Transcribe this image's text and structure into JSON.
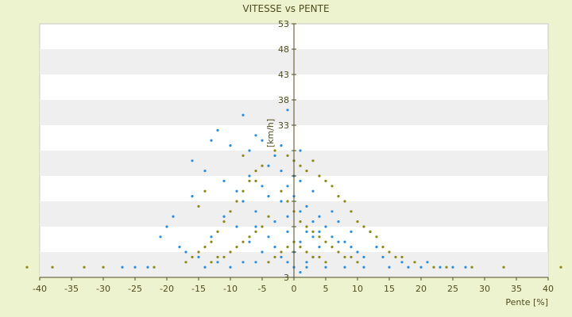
{
  "chart_data": {
    "type": "scatter",
    "title": "VITESSE vs PENTE",
    "xlabel": "Pente [%]",
    "ylabel": "[km/h]",
    "xlim": [
      -40,
      40
    ],
    "ylim": [
      3,
      53
    ],
    "x_ticks": [
      -40,
      -35,
      -30,
      -25,
      -20,
      -15,
      -10,
      -5,
      0,
      5,
      10,
      15,
      20,
      25,
      30,
      35,
      40
    ],
    "y_ticks": [
      3,
      8,
      13,
      18,
      23,
      28,
      33,
      38,
      43,
      48,
      53
    ],
    "y_tick_labels": [
      "3",
      "",
      "",
      "",
      "",
      "",
      "33",
      "38",
      "43",
      "48",
      "53"
    ],
    "grid": "horizontal bands",
    "legend": "none",
    "colors": {
      "series_a": "#2e8fd8",
      "series_b": "#8a8a1a",
      "axis": "#4d4d1f",
      "band": "#efefef"
    },
    "series": [
      {
        "color": "#2e8fd8",
        "points": [
          [
            -12,
            32
          ],
          [
            -13,
            30
          ],
          [
            -8,
            35
          ],
          [
            -10,
            29
          ],
          [
            -7,
            28
          ],
          [
            -6,
            31
          ],
          [
            -5,
            30
          ],
          [
            -1,
            36
          ],
          [
            -16,
            26
          ],
          [
            -14,
            24
          ],
          [
            -20,
            13
          ],
          [
            -21,
            11
          ],
          [
            -19,
            15
          ],
          [
            -18,
            9
          ],
          [
            -17,
            8
          ],
          [
            -16,
            19
          ],
          [
            -11,
            22
          ],
          [
            -9,
            20
          ],
          [
            -8,
            18
          ],
          [
            -7,
            23
          ],
          [
            -6,
            16
          ],
          [
            -5,
            21
          ],
          [
            -4,
            25
          ],
          [
            -3,
            14
          ],
          [
            -2,
            18
          ],
          [
            -1,
            12
          ],
          [
            0,
            26
          ],
          [
            1,
            22
          ],
          [
            2,
            17
          ],
          [
            3,
            20
          ],
          [
            4,
            15
          ],
          [
            5,
            13
          ],
          [
            6,
            11
          ],
          [
            7,
            14
          ],
          [
            8,
            10
          ],
          [
            9,
            9
          ],
          [
            10,
            8
          ],
          [
            12,
            12
          ],
          [
            13,
            9
          ],
          [
            14,
            7
          ],
          [
            -3,
            9
          ],
          [
            -2,
            7
          ],
          [
            -1,
            6
          ],
          [
            0,
            8
          ],
          [
            1,
            10
          ],
          [
            2,
            6
          ],
          [
            3,
            7
          ],
          [
            4,
            9
          ],
          [
            -4,
            11
          ],
          [
            -5,
            8
          ],
          [
            -6,
            6
          ],
          [
            -8,
            6
          ],
          [
            -10,
            5
          ],
          [
            -12,
            6
          ],
          [
            -14,
            5
          ],
          [
            -15,
            7
          ],
          [
            0,
            5
          ],
          [
            1,
            4
          ],
          [
            2,
            5
          ],
          [
            5,
            5
          ],
          [
            8,
            5
          ],
          [
            11,
            5
          ],
          [
            15,
            5
          ],
          [
            17,
            6
          ],
          [
            18,
            5
          ],
          [
            20,
            5
          ],
          [
            21,
            6
          ],
          [
            23,
            5
          ],
          [
            -2,
            24
          ],
          [
            -1,
            21
          ],
          [
            0,
            19
          ],
          [
            1,
            16
          ],
          [
            2,
            12
          ],
          [
            3,
            11
          ],
          [
            -3,
            27
          ],
          [
            -2,
            29
          ],
          [
            1,
            28
          ],
          [
            0,
            23
          ],
          [
            -1,
            15
          ],
          [
            -4,
            19
          ],
          [
            6,
            16
          ],
          [
            7,
            10
          ],
          [
            9,
            12
          ],
          [
            11,
            7
          ],
          [
            4,
            12
          ],
          [
            3,
            14
          ],
          [
            -9,
            13
          ],
          [
            -11,
            15
          ],
          [
            -13,
            11
          ],
          [
            -7,
            10
          ],
          [
            -6,
            13
          ],
          [
            -25,
            5
          ],
          [
            -27,
            5
          ],
          [
            -23,
            5
          ],
          [
            25,
            5
          ],
          [
            27,
            5
          ]
        ]
      },
      {
        "color": "#8a8a1a",
        "points": [
          [
            -3,
            28
          ],
          [
            -1,
            27
          ],
          [
            0,
            26
          ],
          [
            1,
            25
          ],
          [
            2,
            24
          ],
          [
            3,
            26
          ],
          [
            4,
            23
          ],
          [
            5,
            22
          ],
          [
            6,
            21
          ],
          [
            7,
            19
          ],
          [
            8,
            18
          ],
          [
            9,
            16
          ],
          [
            10,
            14
          ],
          [
            11,
            13
          ],
          [
            12,
            12
          ],
          [
            13,
            11
          ],
          [
            14,
            9
          ],
          [
            15,
            8
          ],
          [
            16,
            7
          ],
          [
            17,
            7
          ],
          [
            -5,
            25
          ],
          [
            -6,
            24
          ],
          [
            -7,
            22
          ],
          [
            -8,
            20
          ],
          [
            -9,
            18
          ],
          [
            -10,
            16
          ],
          [
            -11,
            14
          ],
          [
            -12,
            12
          ],
          [
            -13,
            10
          ],
          [
            -14,
            9
          ],
          [
            -15,
            8
          ],
          [
            -16,
            7
          ],
          [
            -17,
            6
          ],
          [
            -2,
            20
          ],
          [
            -1,
            18
          ],
          [
            0,
            16
          ],
          [
            1,
            14
          ],
          [
            2,
            13
          ],
          [
            3,
            12
          ],
          [
            4,
            11
          ],
          [
            5,
            10
          ],
          [
            6,
            9
          ],
          [
            7,
            8
          ],
          [
            8,
            7
          ],
          [
            9,
            7
          ],
          [
            10,
            6
          ],
          [
            -4,
            15
          ],
          [
            -5,
            13
          ],
          [
            -6,
            12
          ],
          [
            -7,
            11
          ],
          [
            -8,
            10
          ],
          [
            -9,
            9
          ],
          [
            -10,
            8
          ],
          [
            -11,
            7
          ],
          [
            -12,
            7
          ],
          [
            -13,
            6
          ],
          [
            0,
            10
          ],
          [
            1,
            9
          ],
          [
            2,
            8
          ],
          [
            3,
            7
          ],
          [
            4,
            7
          ],
          [
            5,
            6
          ],
          [
            -1,
            9
          ],
          [
            -2,
            8
          ],
          [
            -3,
            7
          ],
          [
            -4,
            6
          ],
          [
            -15,
            17
          ],
          [
            -14,
            20
          ],
          [
            -8,
            27
          ],
          [
            -6,
            22
          ],
          [
            19,
            6
          ],
          [
            22,
            5
          ],
          [
            -22,
            5
          ],
          [
            -30,
            5
          ],
          [
            -33,
            5
          ],
          [
            -38,
            5
          ],
          [
            33,
            5
          ],
          [
            28,
            5
          ],
          [
            24,
            5
          ],
          [
            -42,
            5
          ],
          [
            42,
            5
          ]
        ]
      }
    ]
  }
}
